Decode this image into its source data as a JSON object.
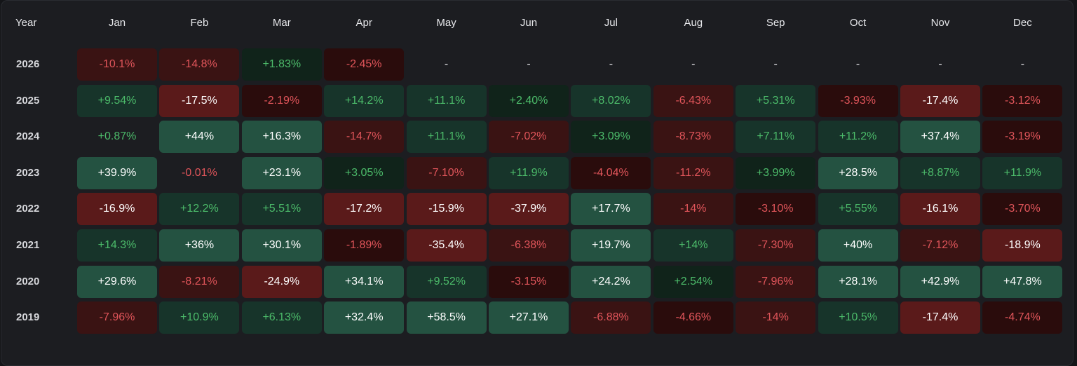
{
  "chart_data": {
    "type": "heatmap",
    "row_header": "Year",
    "columns": [
      "Jan",
      "Feb",
      "Mar",
      "Apr",
      "May",
      "Jun",
      "Jul",
      "Aug",
      "Sep",
      "Oct",
      "Nov",
      "Dec"
    ],
    "rows": [
      {
        "year": "2026",
        "values": [
          "-10.1%",
          "-14.8%",
          "+1.83%",
          "-2.45%",
          "-",
          "-",
          "-",
          "-",
          "-",
          "-",
          "-",
          "-"
        ]
      },
      {
        "year": "2025",
        "values": [
          "+9.54%",
          "-17.5%",
          "-2.19%",
          "+14.2%",
          "+11.1%",
          "+2.40%",
          "+8.02%",
          "-6.43%",
          "+5.31%",
          "-3.93%",
          "-17.4%",
          "-3.12%"
        ]
      },
      {
        "year": "2024",
        "values": [
          "+0.87%",
          "+44%",
          "+16.3%",
          "-14.7%",
          "+11.1%",
          "-7.02%",
          "+3.09%",
          "-8.73%",
          "+7.11%",
          "+11.2%",
          "+37.4%",
          "-3.19%"
        ]
      },
      {
        "year": "2023",
        "values": [
          "+39.9%",
          "-0.01%",
          "+23.1%",
          "+3.05%",
          "-7.10%",
          "+11.9%",
          "-4.04%",
          "-11.2%",
          "+3.99%",
          "+28.5%",
          "+8.87%",
          "+11.9%"
        ]
      },
      {
        "year": "2022",
        "values": [
          "-16.9%",
          "+12.2%",
          "+5.51%",
          "-17.2%",
          "-15.9%",
          "-37.9%",
          "+17.7%",
          "-14%",
          "-3.10%",
          "+5.55%",
          "-16.1%",
          "-3.70%"
        ]
      },
      {
        "year": "2021",
        "values": [
          "+14.3%",
          "+36%",
          "+30.1%",
          "-1.89%",
          "-35.4%",
          "-6.38%",
          "+19.7%",
          "+14%",
          "-7.30%",
          "+40%",
          "-7.12%",
          "-18.9%"
        ]
      },
      {
        "year": "2020",
        "values": [
          "+29.6%",
          "-8.21%",
          "-24.9%",
          "+34.1%",
          "+9.52%",
          "-3.15%",
          "+24.2%",
          "+2.54%",
          "-7.96%",
          "+28.1%",
          "+42.9%",
          "+47.8%"
        ]
      },
      {
        "year": "2019",
        "values": [
          "-7.96%",
          "+10.9%",
          "+6.13%",
          "+32.4%",
          "+58.5%",
          "+27.1%",
          "-6.88%",
          "-4.66%",
          "-14%",
          "+10.5%",
          "-17.4%",
          "-4.74%"
        ]
      }
    ],
    "colors": {
      "neg": [
        "#2a0c0c",
        "#3a1313",
        "#5a1a1a"
      ],
      "pos": [
        "#10231a",
        "#17342a",
        "#245241"
      ],
      "neg_text": "#e0555a",
      "pos_text": "#4cbb6a",
      "strong_text": "#ffffff"
    }
  }
}
